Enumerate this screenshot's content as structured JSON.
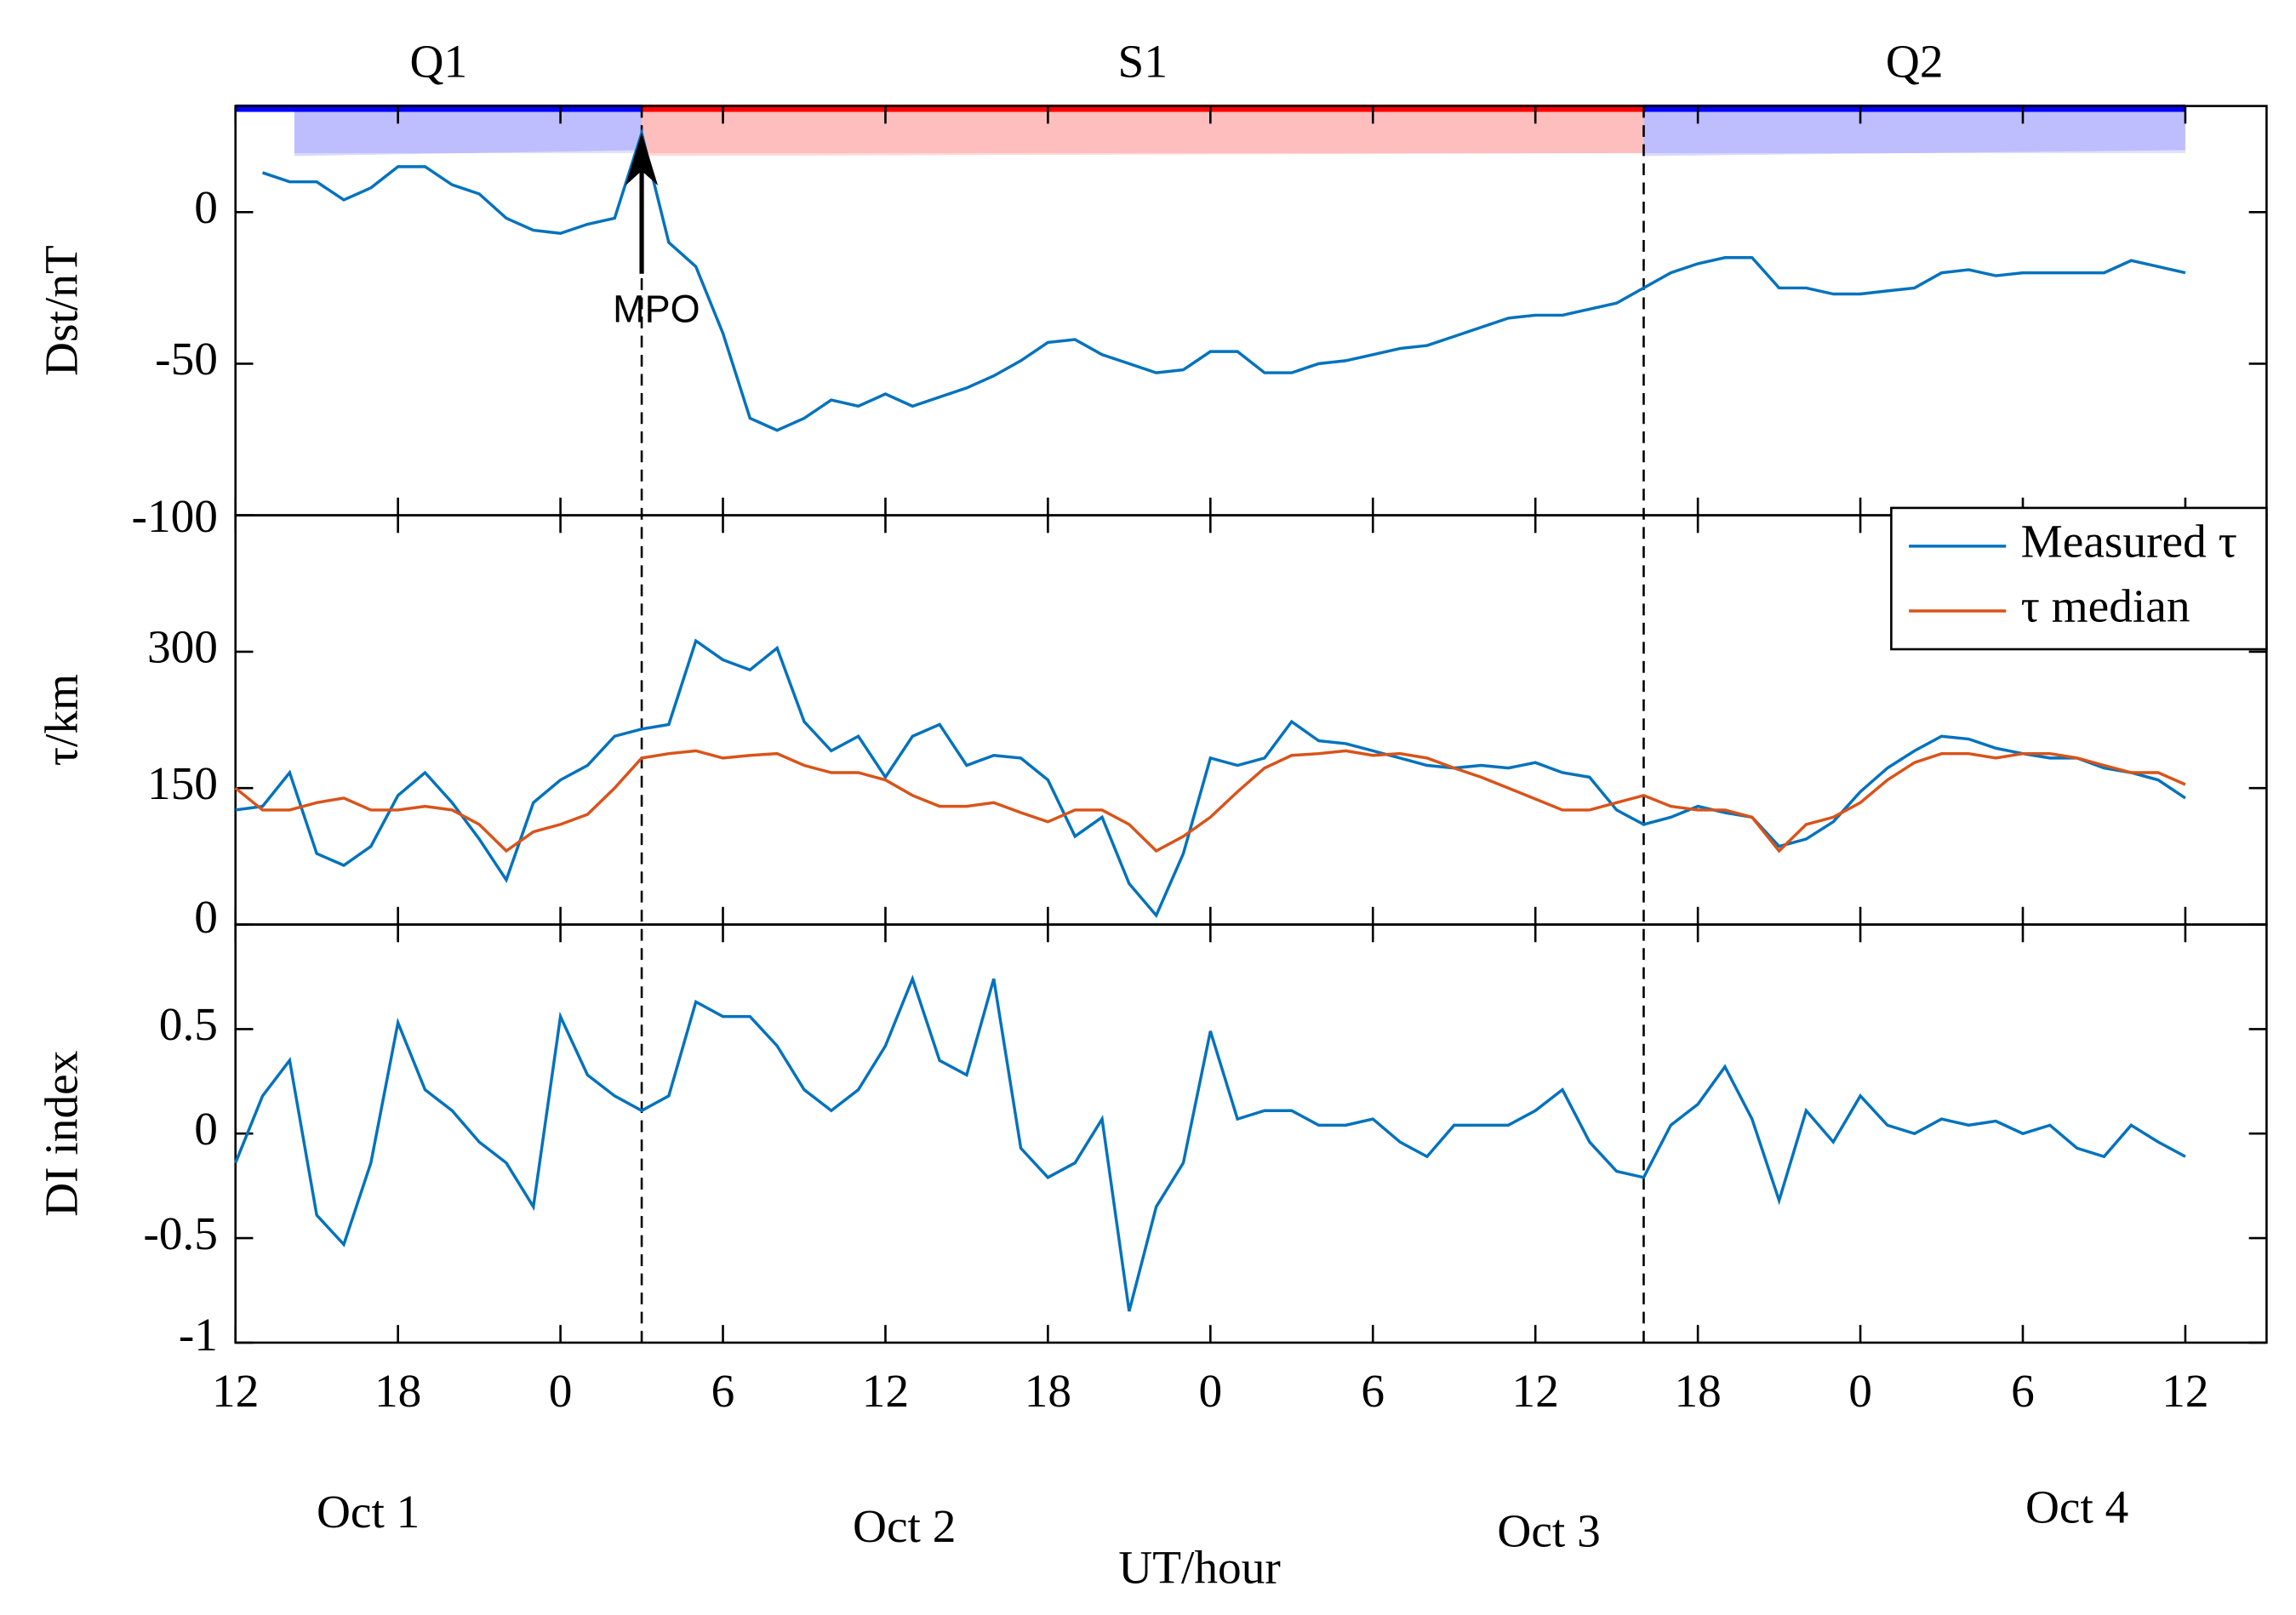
{
  "chart_data": [
    {
      "type": "line",
      "y_label": "Dst/nT",
      "x": [
        1,
        2,
        3,
        4,
        5,
        6,
        7,
        8,
        9,
        10,
        11,
        12,
        13,
        14,
        15,
        16,
        17,
        18,
        19,
        20,
        21,
        22,
        23,
        24,
        25,
        26,
        27,
        28,
        29,
        30,
        31,
        32,
        33,
        34,
        35,
        36,
        37,
        38,
        39,
        40,
        41,
        42,
        43,
        44,
        45,
        46,
        47,
        48,
        49,
        50,
        51,
        52,
        53,
        54,
        55,
        56,
        57,
        58,
        59,
        60,
        61,
        62,
        63,
        64,
        65,
        66,
        67,
        68,
        69,
        70,
        71,
        72
      ],
      "series": [
        {
          "color": "#0072bd",
          "values": [
            13,
            10,
            10,
            4,
            8,
            15,
            15,
            9,
            6,
            -2,
            -6,
            -7,
            -4,
            -2,
            26,
            -10,
            -18,
            -40,
            -68,
            -72,
            -68,
            -62,
            -64,
            -60,
            -64,
            -61,
            -58,
            -54,
            -49,
            -43,
            -42,
            -47,
            -50,
            -53,
            -52,
            -46,
            -46,
            -53,
            -53,
            -50,
            -49,
            -47,
            -45,
            -44,
            -41,
            -38,
            -35,
            -34,
            -34,
            -32,
            -30,
            -25,
            -20,
            -17,
            -15,
            -15,
            -25,
            -25,
            -27,
            -27,
            -26,
            -25,
            -20,
            -19,
            -21,
            -20,
            -20,
            -20,
            -20,
            -16,
            -18,
            -20
          ]
        }
      ],
      "xlim": [
        0,
        75
      ],
      "ylim": [
        -100,
        35
      ],
      "yticks": [
        -100,
        -50,
        0
      ],
      "xticks": [
        {
          "value": 0,
          "label": "12"
        },
        {
          "value": 6,
          "label": "18"
        },
        {
          "value": 12,
          "label": "0"
        },
        {
          "value": 18,
          "label": "6"
        },
        {
          "value": 24,
          "label": "12"
        },
        {
          "value": 30,
          "label": "18"
        },
        {
          "value": 36,
          "label": "0"
        },
        {
          "value": 42,
          "label": "6"
        },
        {
          "value": 48,
          "label": "12"
        },
        {
          "value": 54,
          "label": "18"
        },
        {
          "value": 60,
          "label": "0"
        },
        {
          "value": 66,
          "label": "6"
        },
        {
          "value": 72,
          "label": "12"
        }
      ],
      "annotation": {
        "text": "MPO",
        "x": 15
      }
    },
    {
      "type": "line",
      "y_label": "τ/km",
      "legend": "upper right",
      "x": [
        0,
        1,
        2,
        3,
        4,
        5,
        6,
        7,
        8,
        9,
        10,
        11,
        12,
        13,
        14,
        15,
        16,
        17,
        18,
        19,
        20,
        21,
        22,
        23,
        24,
        25,
        26,
        27,
        28,
        29,
        30,
        31,
        32,
        33,
        34,
        35,
        36,
        37,
        38,
        39,
        40,
        41,
        42,
        43,
        44,
        45,
        46,
        47,
        48,
        49,
        50,
        51,
        52,
        53,
        54,
        55,
        56,
        57,
        58,
        59,
        60,
        61,
        62,
        63,
        64,
        65,
        66,
        67,
        68,
        69,
        70,
        71,
        72
      ],
      "series": [
        {
          "name": "Measured τ",
          "color": "#0072bd",
          "values": [
            126,
            130,
            167,
            78,
            65,
            86,
            142,
            167,
            134,
            94,
            49,
            134,
            159,
            175,
            207,
            215,
            220,
            312,
            291,
            280,
            304,
            223,
            191,
            207,
            162,
            207,
            220,
            175,
            186,
            183,
            159,
            97,
            118,
            45,
            10,
            78,
            183,
            175,
            183,
            223,
            202,
            199,
            191,
            183,
            175,
            172,
            175,
            172,
            178,
            167,
            162,
            126,
            110,
            118,
            130,
            123,
            118,
            86,
            94,
            113,
            146,
            172,
            191,
            207,
            204,
            194,
            188,
            183,
            183,
            172,
            167,
            159,
            139
          ]
        },
        {
          "name": "τ median",
          "color": "#d95319",
          "values": [
            150,
            126,
            126,
            134,
            139,
            126,
            126,
            130,
            126,
            110,
            81,
            102,
            110,
            121,
            150,
            183,
            188,
            191,
            183,
            186,
            188,
            175,
            167,
            167,
            159,
            142,
            130,
            130,
            134,
            123,
            113,
            126,
            126,
            110,
            81,
            97,
            118,
            146,
            172,
            186,
            188,
            191,
            186,
            188,
            183,
            172,
            162,
            150,
            138,
            126,
            126,
            134,
            142,
            130,
            126,
            126,
            118,
            81,
            110,
            118,
            134,
            159,
            178,
            188,
            188,
            183,
            188,
            188,
            183,
            175,
            167,
            167,
            154
          ]
        }
      ],
      "xlim": [
        0,
        75
      ],
      "ylim": [
        0,
        450
      ],
      "yticks": [
        0,
        150,
        300
      ],
      "xticks": [
        {
          "value": 0,
          "label": "12"
        },
        {
          "value": 6,
          "label": "18"
        },
        {
          "value": 12,
          "label": "0"
        },
        {
          "value": 18,
          "label": "6"
        },
        {
          "value": 24,
          "label": "12"
        },
        {
          "value": 30,
          "label": "18"
        },
        {
          "value": 36,
          "label": "0"
        },
        {
          "value": 42,
          "label": "6"
        },
        {
          "value": 48,
          "label": "12"
        },
        {
          "value": 54,
          "label": "18"
        },
        {
          "value": 60,
          "label": "0"
        },
        {
          "value": 66,
          "label": "6"
        },
        {
          "value": 72,
          "label": "12"
        }
      ]
    },
    {
      "type": "line",
      "y_label": "DI index",
      "x_label": "UT/hour",
      "x": [
        0,
        1,
        2,
        3,
        4,
        5,
        6,
        7,
        8,
        9,
        10,
        11,
        12,
        13,
        14,
        15,
        16,
        17,
        18,
        19,
        20,
        21,
        22,
        23,
        24,
        25,
        26,
        27,
        28,
        29,
        30,
        31,
        32,
        33,
        34,
        35,
        36,
        37,
        38,
        39,
        40,
        41,
        42,
        43,
        44,
        45,
        46,
        47,
        48,
        49,
        50,
        51,
        52,
        53,
        54,
        55,
        56,
        57,
        58,
        59,
        60,
        61,
        62,
        63,
        64,
        65,
        66,
        67,
        68,
        69,
        70,
        71,
        72
      ],
      "series": [
        {
          "color": "#0072bd",
          "values": [
            -0.14,
            0.18,
            0.35,
            -0.39,
            -0.53,
            -0.14,
            0.53,
            0.21,
            0.11,
            -0.04,
            -0.14,
            -0.35,
            0.56,
            0.28,
            0.18,
            0.11,
            0.18,
            0.63,
            0.56,
            0.56,
            0.42,
            0.21,
            0.11,
            0.21,
            0.42,
            0.74,
            0.35,
            0.28,
            0.74,
            -0.07,
            -0.21,
            -0.14,
            0.07,
            -0.85,
            -0.35,
            -0.14,
            0.49,
            0.07,
            0.11,
            0.11,
            0.04,
            0.04,
            0.07,
            -0.04,
            -0.11,
            0.04,
            0.04,
            0.04,
            0.11,
            0.21,
            -0.04,
            -0.18,
            -0.21,
            0.04,
            0.14,
            0.32,
            0.07,
            -0.32,
            0.11,
            -0.04,
            0.18,
            0.04,
            0,
            0.07,
            0.04,
            0.06,
            0,
            0.04,
            -0.07,
            -0.11,
            0.04,
            -0.04,
            -0.11
          ]
        }
      ],
      "xlim": [
        0,
        75
      ],
      "ylim": [
        -1,
        1
      ],
      "yticks": [
        -1,
        -0.5,
        0,
        0.5
      ],
      "xticks": [
        {
          "value": 0,
          "label": "12"
        },
        {
          "value": 6,
          "label": "18"
        },
        {
          "value": 12,
          "label": "0"
        },
        {
          "value": 18,
          "label": "6"
        },
        {
          "value": 24,
          "label": "12"
        },
        {
          "value": 30,
          "label": "18"
        },
        {
          "value": 36,
          "label": "0"
        },
        {
          "value": 42,
          "label": "6"
        },
        {
          "value": 48,
          "label": "12"
        },
        {
          "value": 54,
          "label": "18"
        },
        {
          "value": 60,
          "label": "0"
        },
        {
          "value": 66,
          "label": "6"
        },
        {
          "value": 72,
          "label": "12"
        }
      ],
      "day_labels": [
        "Oct 1",
        "Oct 2",
        "Oct 3",
        "Oct 4"
      ]
    }
  ],
  "phases": [
    {
      "label": "Q1",
      "start": 0,
      "end": 15,
      "color": "#0000ff"
    },
    {
      "label": "S1",
      "start": 15,
      "end": 52,
      "color": "#ff0000"
    },
    {
      "label": "Q2",
      "start": 52,
      "end": 72,
      "color": "#0000ff"
    }
  ]
}
